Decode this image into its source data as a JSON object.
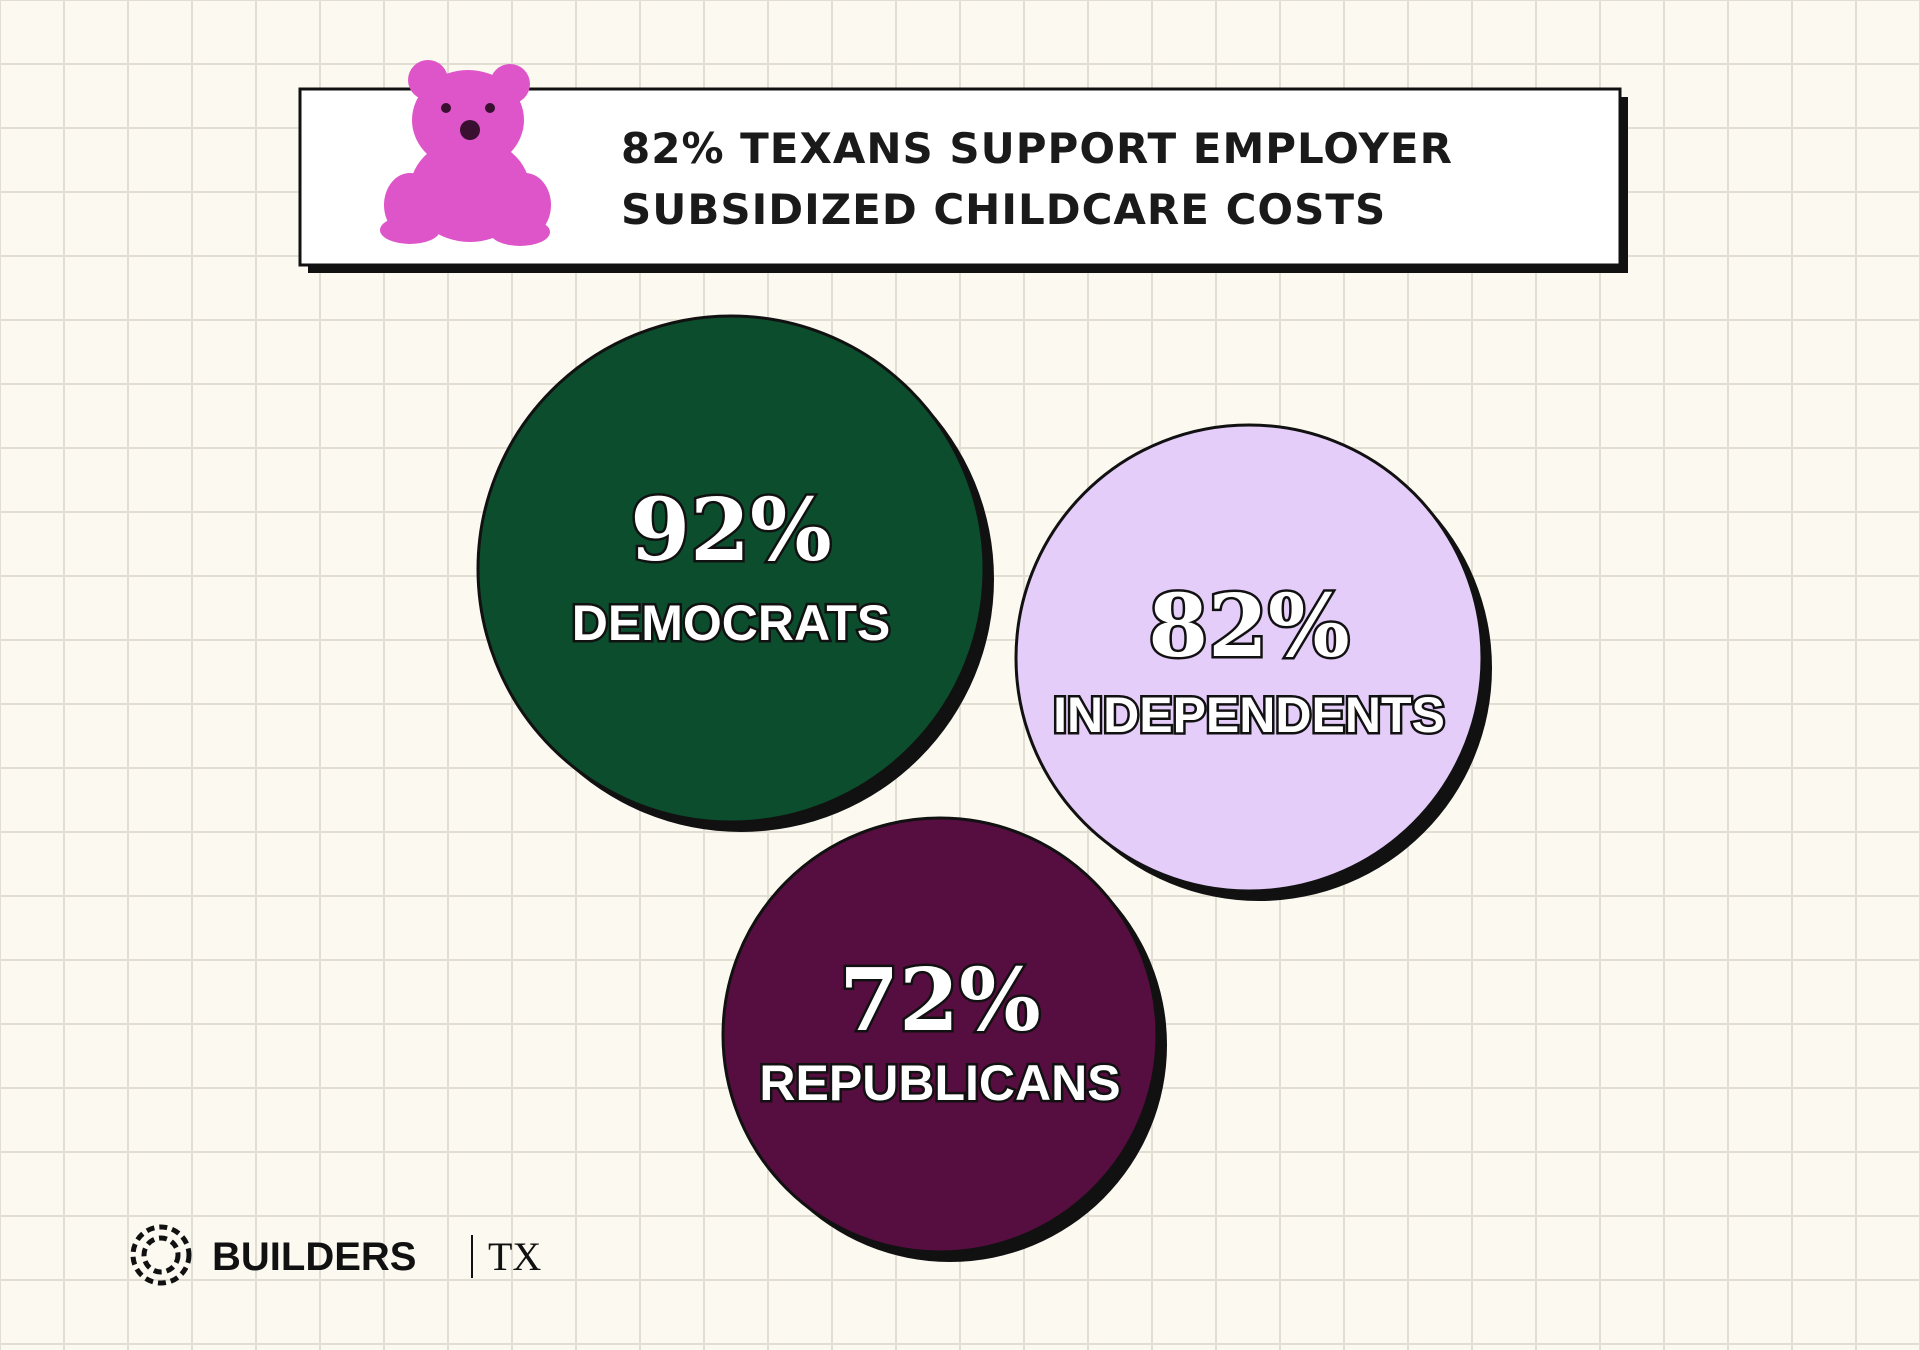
{
  "header": {
    "title_lines": [
      "82% TEXANS SUPPORT EMPLOYER",
      "SUBSIDIZED CHILDCARE COSTS"
    ]
  },
  "groups": [
    {
      "percent": "92%",
      "label": "DEMOCRATS"
    },
    {
      "percent": "82%",
      "label": "INDEPENDENTS"
    },
    {
      "percent": "72%",
      "label": "REPUBLICANS"
    }
  ],
  "footer": {
    "brand": "BUILDERS",
    "region": "TX"
  }
}
